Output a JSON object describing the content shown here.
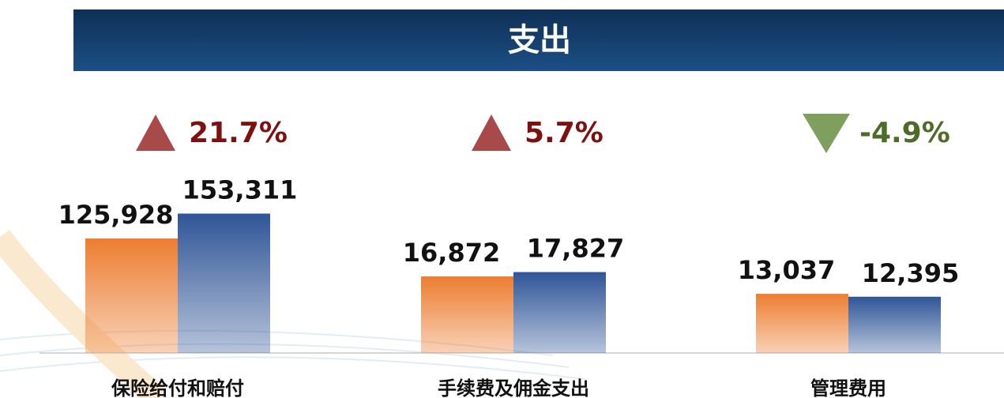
{
  "title": "支出",
  "chart_data": [
    {
      "type": "bar",
      "label": "保险给付和赔付",
      "values": [
        125928,
        153311
      ],
      "value_labels": [
        "125,928",
        "153,311"
      ],
      "colors": [
        "#ed7d31",
        "#2f5597"
      ],
      "ylim": [
        0,
        173700
      ],
      "change": {
        "value": 21.7,
        "label": "21.7%"
      },
      "change_color": "#7f1010",
      "arrow_color": "#a84a4a"
    },
    {
      "type": "bar",
      "label": "手续费及佣金支出",
      "values": [
        16872,
        17827
      ],
      "value_labels": [
        "16,872",
        "17,827"
      ],
      "colors": [
        "#ed7d31",
        "#2f5597"
      ],
      "ylim": [
        0,
        34800
      ],
      "change": {
        "value": 5.7,
        "label": "5.7%"
      },
      "change_color": "#7f1010",
      "arrow_color": "#a84a4a"
    },
    {
      "type": "bar",
      "label": "管理费用",
      "values": [
        13037,
        12395
      ],
      "value_labels": [
        "13,037",
        "12,395"
      ],
      "colors": [
        "#ed7d31",
        "#2f5597"
      ],
      "ylim": [
        0,
        34800
      ],
      "change": {
        "value": -4.9,
        "label": "-4.9%"
      },
      "change_color": "#4f6b2a",
      "arrow_color": "#7f9f5f"
    }
  ]
}
